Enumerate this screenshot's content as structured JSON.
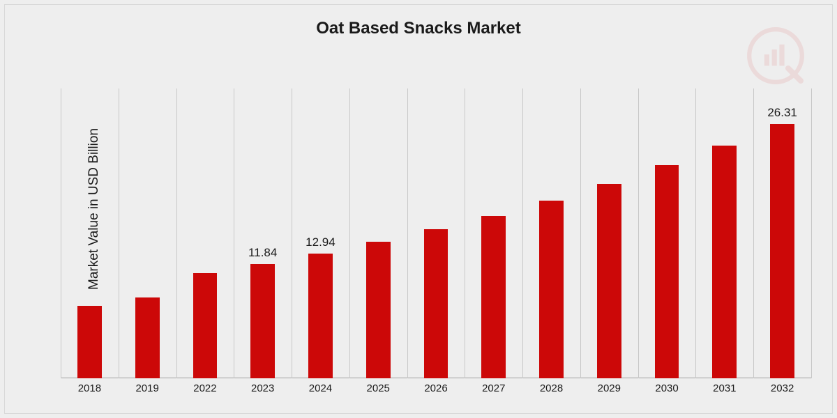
{
  "chart": {
    "type": "bar",
    "title": "Oat Based Snacks Market",
    "title_fontsize": 24,
    "y_label": "Market Value in USD Billion",
    "y_label_fontsize": 19,
    "background_color": "#eeeeee",
    "border_color": "#d8d8d8",
    "grid_color": "#c8c8c8",
    "baseline_color": "#a0a0a0",
    "bar_color": "#cc0808",
    "text_color": "#1a1a1a",
    "x_tick_fontsize": 15,
    "bar_label_fontsize": 17,
    "ylim": [
      0,
      30
    ],
    "bar_width_ratio": 0.42,
    "categories": [
      "2018",
      "2019",
      "2022",
      "2023",
      "2024",
      "2025",
      "2026",
      "2027",
      "2028",
      "2029",
      "2030",
      "2031",
      "2032"
    ],
    "values": [
      7.5,
      8.4,
      10.9,
      11.84,
      12.94,
      14.1,
      15.4,
      16.8,
      18.4,
      20.1,
      22.1,
      24.1,
      26.31
    ],
    "value_labels": {
      "3": "11.84",
      "4": "12.94",
      "12": "26.31"
    }
  }
}
